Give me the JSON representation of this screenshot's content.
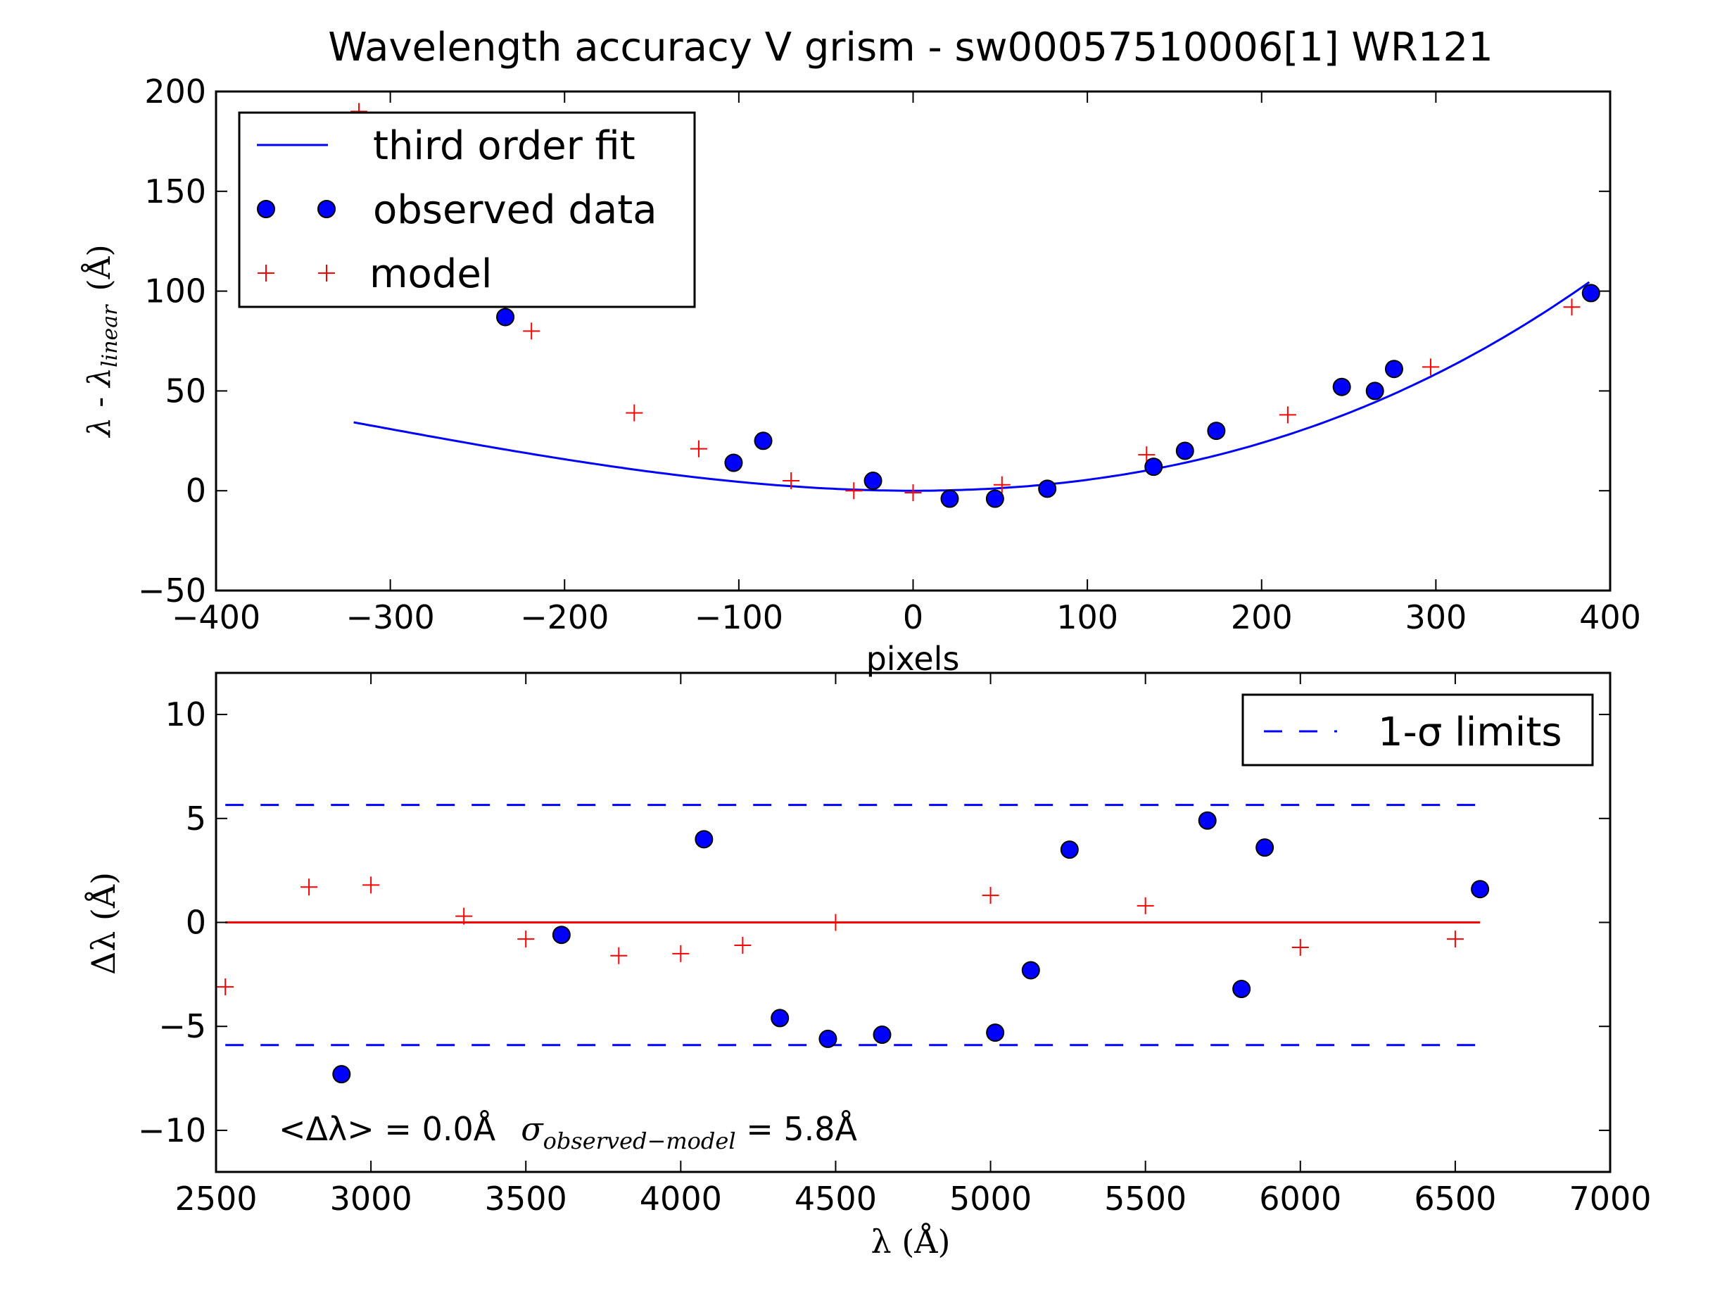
{
  "title": "Wavelength accuracy V grism - sw00057510006[1] WR121",
  "colors": {
    "fit_line": "#0000ff",
    "observed_marker": "#0000ff",
    "model_marker": "#ff0000",
    "zero_line": "#ff0000",
    "sigma_line": "#0000ff",
    "axes": "#000000",
    "background": "#ffffff"
  },
  "chart_data": [
    {
      "type": "scatter",
      "xlabel": "pixels",
      "ylabel_parts": {
        "lambda": "λ",
        "minus": " - ",
        "sub": "linear",
        "unit": "(Å)"
      },
      "xlim": [
        -400,
        400
      ],
      "ylim": [
        -50,
        200
      ],
      "xticks": [
        -400,
        -300,
        -200,
        -100,
        0,
        100,
        200,
        300,
        400
      ],
      "xtick_labels": [
        "−400",
        "−300",
        "−200",
        "−100",
        "0",
        "100",
        "200",
        "300",
        "400"
      ],
      "yticks": [
        -50,
        0,
        50,
        100,
        150,
        200
      ],
      "ytick_labels": [
        "−50",
        "0",
        "50",
        "100",
        "150",
        "200"
      ],
      "grid": false,
      "legend_position": "upper-left",
      "fit_curve": {
        "type": "polynomial",
        "degree": 3,
        "coefficients_c3_c2_c1_c0": [
          5.1e-07,
          0.0004963,
          0.0,
          0.0
        ],
        "x_range": [
          -321,
          388
        ]
      },
      "series": [
        {
          "name": "third order fit",
          "kind": "line"
        },
        {
          "name": "observed data",
          "kind": "markers",
          "x": [
            -234,
            -103,
            -86,
            -23,
            21,
            47,
            77,
            138,
            156,
            174,
            246,
            265,
            276,
            389
          ],
          "y": [
            87,
            14,
            25,
            5,
            -4,
            -4,
            1,
            12,
            20,
            30,
            52,
            50,
            61,
            99
          ]
        },
        {
          "name": "model",
          "kind": "plus",
          "x": [
            -318,
            -219,
            -160,
            -123,
            -70,
            -34,
            0,
            51,
            134,
            215,
            297,
            378
          ],
          "y": [
            190,
            80,
            39,
            21,
            5,
            0,
            -1,
            3,
            18,
            38,
            62,
            92
          ]
        }
      ]
    },
    {
      "type": "scatter",
      "xlabel": "λ (Å)",
      "ylabel": "Δλ (Å)",
      "xlim": [
        2500,
        7000
      ],
      "ylim": [
        -12,
        12
      ],
      "xticks": [
        2500,
        3000,
        3500,
        4000,
        4500,
        5000,
        5500,
        6000,
        6500,
        7000
      ],
      "xtick_labels": [
        "2500",
        "3000",
        "3500",
        "4000",
        "4500",
        "5000",
        "5500",
        "6000",
        "6500",
        "7000"
      ],
      "yticks": [
        -10,
        -5,
        0,
        5,
        10
      ],
      "ytick_labels": [
        "−10",
        "−5",
        "0",
        "5",
        "10"
      ],
      "grid": false,
      "legend_position": "upper-right",
      "sigma_limits": {
        "upper": 5.65,
        "lower": -5.9,
        "x_range": [
          2530,
          6580
        ]
      },
      "zero_line": {
        "y": 0,
        "x_range": [
          2530,
          6580
        ]
      },
      "series": [
        {
          "name": "1-σ limits",
          "kind": "dashed"
        },
        {
          "name": "observed data",
          "kind": "markers",
          "x": [
            2905,
            3615,
            4075,
            4320,
            4475,
            4650,
            5015,
            5130,
            5255,
            5700,
            5810,
            5885,
            6580
          ],
          "y": [
            -7.3,
            -0.6,
            4.0,
            -4.6,
            -5.6,
            -5.4,
            -5.3,
            -2.3,
            3.5,
            4.9,
            -3.2,
            3.6,
            1.6
          ]
        },
        {
          "name": "model",
          "kind": "plus",
          "x": [
            2530,
            2800,
            3000,
            3300,
            3500,
            3800,
            4000,
            4200,
            4500,
            5000,
            5500,
            6000,
            6500
          ],
          "y": [
            -3.1,
            1.7,
            1.8,
            0.3,
            -0.8,
            -1.6,
            -1.5,
            -1.1,
            0.0,
            1.3,
            0.8,
            -1.2,
            -0.8
          ]
        }
      ],
      "annotation": {
        "mean_text": "<Δλ> = 0.0Å",
        "sigma_symbol": "σ",
        "sigma_sub": "observed−model",
        "sigma_value_text": " = 5.8Å"
      }
    }
  ]
}
